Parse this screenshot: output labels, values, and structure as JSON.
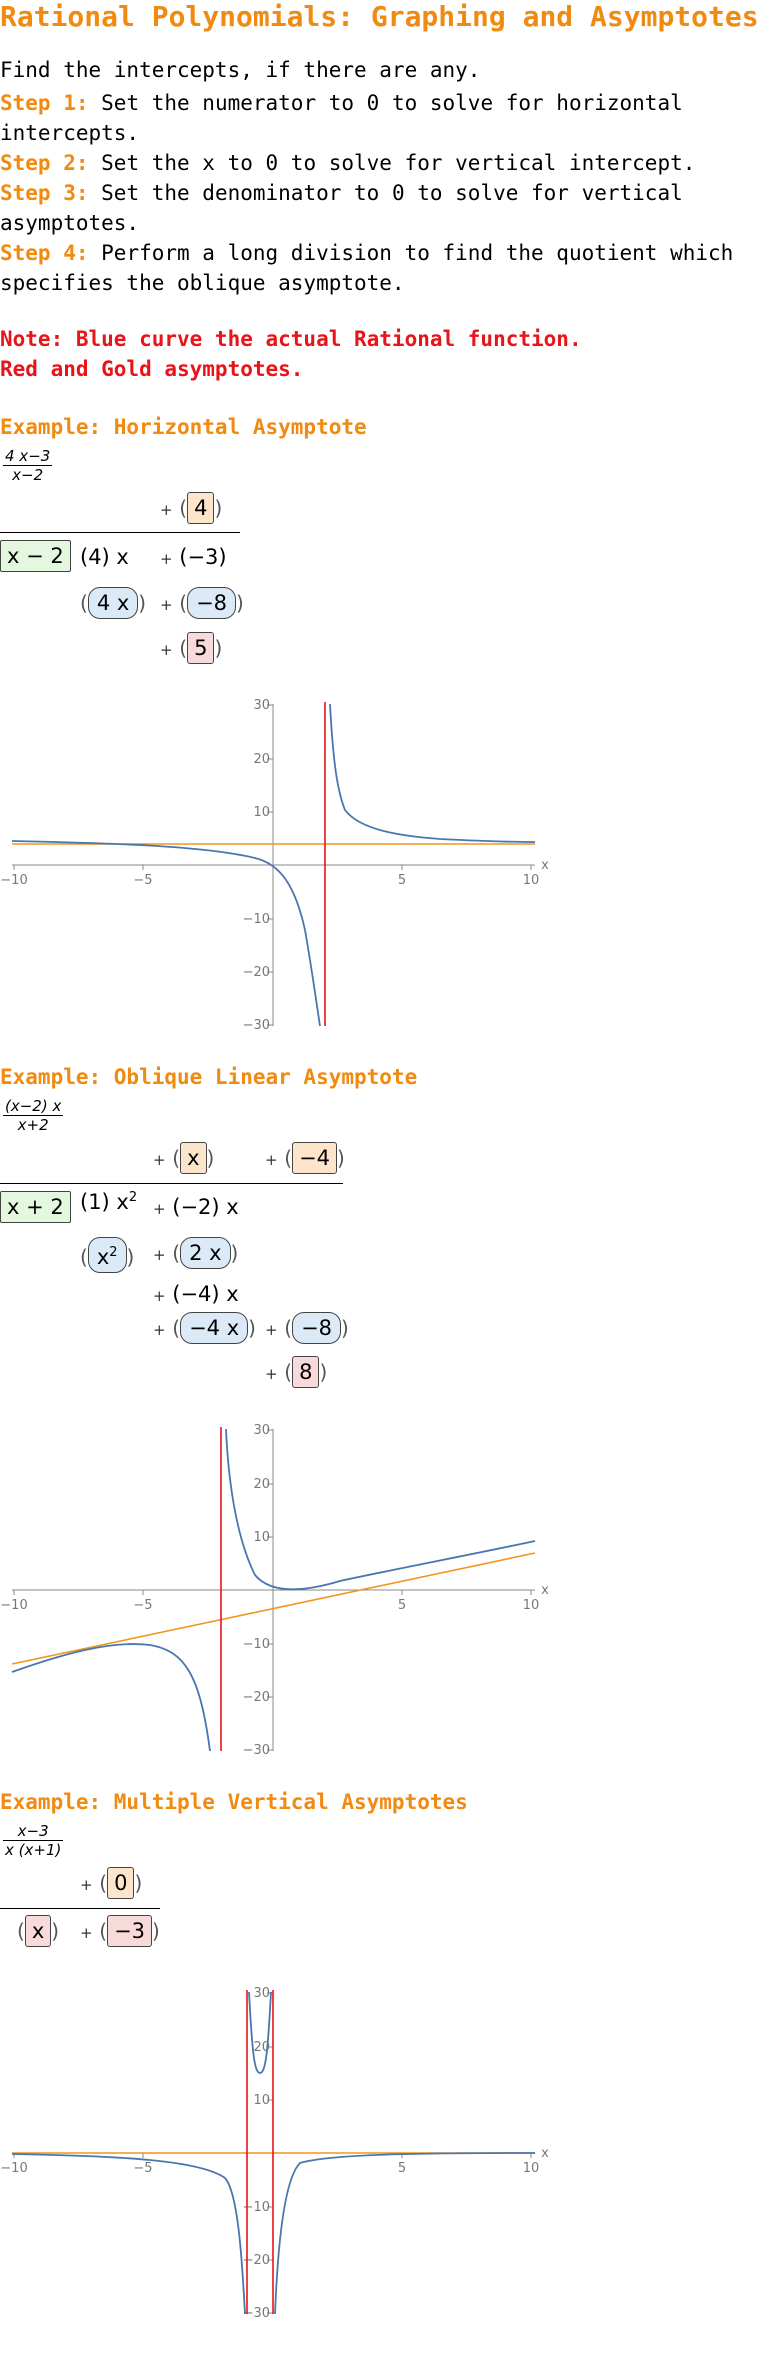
{
  "title": "Rational Polynomials: Graphing and Asymptotes",
  "intro": "Find the intercepts, if there are any.",
  "steps": [
    {
      "label": "Step 1:",
      "text1": " Set the numerator to 0 to solve for horizontal",
      "text2": "intercepts."
    },
    {
      "label": "Step 2:",
      "text1": " Set the x to 0 to solve for vertical intercept.",
      "text2": ""
    },
    {
      "label": "Step 3:",
      "text1": " Set the denominator to 0 to solve for vertical",
      "text2": "asymptotes."
    },
    {
      "label": "Step 4:",
      "text1": " Perform a long division to find the quotient which",
      "text2": "specifies the oblique asymptote."
    }
  ],
  "notes": [
    "Note: Blue curve the actual Rational function.",
    "Red and Gold asymptotes."
  ],
  "examples": [
    {
      "heading": "Example: Horizontal Asymptote",
      "numerator": "4 x−3",
      "denominator": "x−2",
      "quotient": [
        "4"
      ],
      "divisor": "x − 2",
      "dividend_row": [
        "(4) x",
        "(−3)"
      ],
      "sub_row": [
        "4 x",
        "−8"
      ],
      "remainder": "5"
    },
    {
      "heading": "Example: Oblique Linear Asymptote",
      "numerator": "(x−2) x",
      "denominator": "x+2",
      "quotient": [
        "x",
        "−4"
      ],
      "divisor": "x + 2",
      "dividend_row": [
        "(1) x",
        "(−2) x"
      ],
      "sub_row": [
        "x",
        "2 x"
      ],
      "mid_row": "(−4) x",
      "sub_row2": [
        "−4 x",
        "−8"
      ],
      "remainder": "8"
    },
    {
      "heading": "Example: Multiple Vertical Asymptotes",
      "numerator": "x−3",
      "denominator": "x (x+1)",
      "quotient": [
        "0"
      ],
      "divisor_factor": "x",
      "remainder": "−3"
    }
  ],
  "axis": {
    "x_ticks": [
      "−10",
      "−5",
      "5",
      "10"
    ],
    "y_ticks": [
      "30",
      "20",
      "10",
      "−10",
      "−20",
      "−30"
    ],
    "x_label": "x"
  },
  "colors": {
    "curve": "#4a76b0",
    "vertical": "#e8141a",
    "oblique": "#f0961e"
  },
  "chart_data": [
    {
      "type": "line",
      "function": "(4x-3)/(x-2)",
      "xlim": [
        -10,
        10
      ],
      "ylim": [
        -30,
        30
      ],
      "vertical_asymptotes": [
        2
      ],
      "horizontal_asymptote": 4
    },
    {
      "type": "line",
      "function": "(x-2)x/(x+2)",
      "xlim": [
        -10,
        10
      ],
      "ylim": [
        -30,
        30
      ],
      "vertical_asymptotes": [
        -2
      ],
      "oblique_asymptote": "x-4"
    },
    {
      "type": "line",
      "function": "(x-3)/(x(x+1))",
      "xlim": [
        -10,
        10
      ],
      "ylim": [
        -30,
        30
      ],
      "vertical_asymptotes": [
        -1,
        0
      ],
      "horizontal_asymptote": 0
    }
  ]
}
